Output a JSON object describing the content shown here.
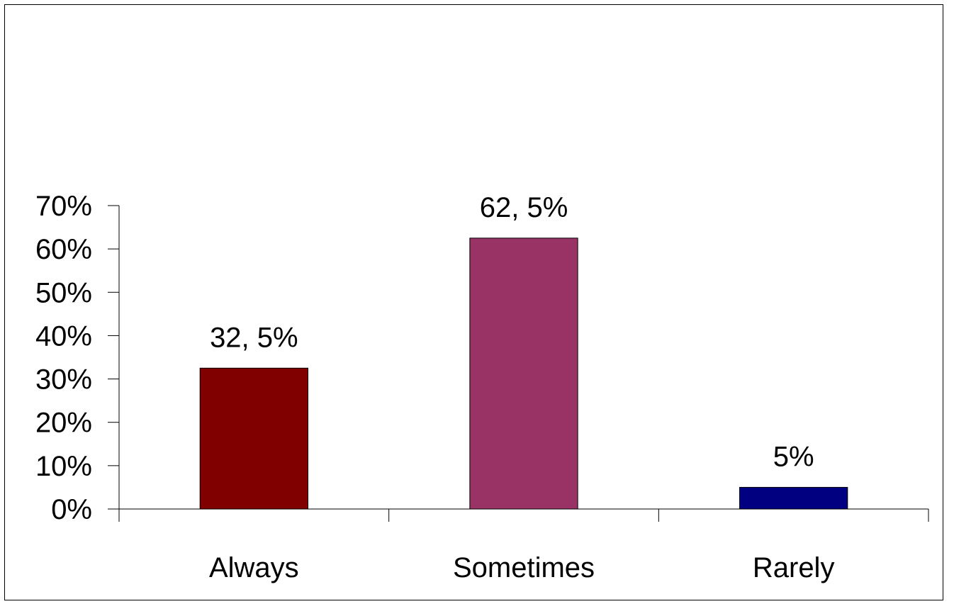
{
  "chart_data": {
    "type": "bar",
    "categories": [
      "Always",
      "Sometimes",
      "Rarely"
    ],
    "values": [
      32.5,
      62.5,
      5
    ],
    "data_labels": [
      "32, 5%",
      "62, 5%",
      "5%"
    ],
    "colors": [
      "#800000",
      "#993366",
      "#000080"
    ],
    "ylim": [
      0,
      70
    ],
    "yticks": [
      0,
      10,
      20,
      30,
      40,
      50,
      60,
      70
    ],
    "ytick_labels": [
      "0%",
      "10%",
      "20%",
      "30%",
      "40%",
      "50%",
      "60%",
      "70%"
    ],
    "grid": false,
    "legend": "none"
  }
}
